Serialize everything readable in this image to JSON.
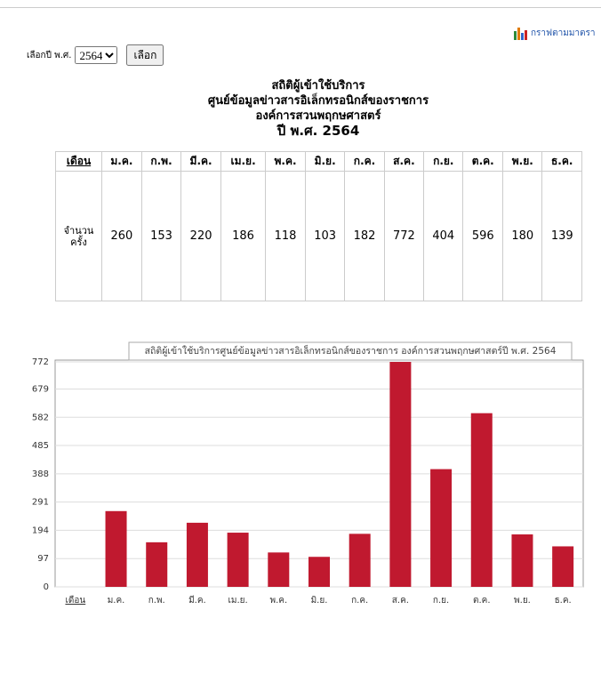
{
  "header": {
    "link": "กราฟตามมาตรา",
    "year_label": "เลือกปี พ.ศ.",
    "year_selected": "2564",
    "button": "เลือก",
    "title_lines": [
      "สถิติผู้เข้าใช้บริการ",
      "ศูนย์ข้อมูลข่าวสารอิเล็กทรอนิกส์ของราชการ",
      "องค์การสวนพฤกษศาสตร์"
    ],
    "title_year": "ปี พ.ศ. 2564"
  },
  "table": {
    "columns": [
      "เดือน",
      "ม.ค.",
      "ก.พ.",
      "มี.ค.",
      "เม.ย.",
      "พ.ค.",
      "มิ.ย.",
      "ก.ค.",
      "ส.ค.",
      "ก.ย.",
      "ต.ค.",
      "พ.ย.",
      "ธ.ค."
    ],
    "row_label": "จำนวนครั้ง",
    "values": [
      260,
      153,
      220,
      186,
      118,
      103,
      182,
      772,
      404,
      596,
      180,
      139
    ]
  },
  "chart_data": {
    "type": "bar",
    "title": "สถิติผู้เข้าใช้บริการศูนย์ข้อมูลข่าวสารอิเล็กทรอนิกส์ของราชการ องค์การสวนพฤกษศาสตร์ปี พ.ศ. 2564",
    "categories": [
      "เดือน",
      "ม.ค.",
      "ก.พ.",
      "มี.ค.",
      "เม.ย.",
      "พ.ค.",
      "มิ.ย.",
      "ก.ค.",
      "ส.ค.",
      "ก.ย.",
      "ต.ค.",
      "พ.ย.",
      "ธ.ค."
    ],
    "values": [
      null,
      260,
      153,
      220,
      186,
      118,
      103,
      182,
      772,
      404,
      596,
      180,
      139
    ],
    "color": "#c0192f",
    "ylim": [
      0,
      772
    ],
    "yticks": [
      0,
      97,
      194,
      291,
      388,
      485,
      582,
      679,
      772
    ],
    "grid": true
  }
}
